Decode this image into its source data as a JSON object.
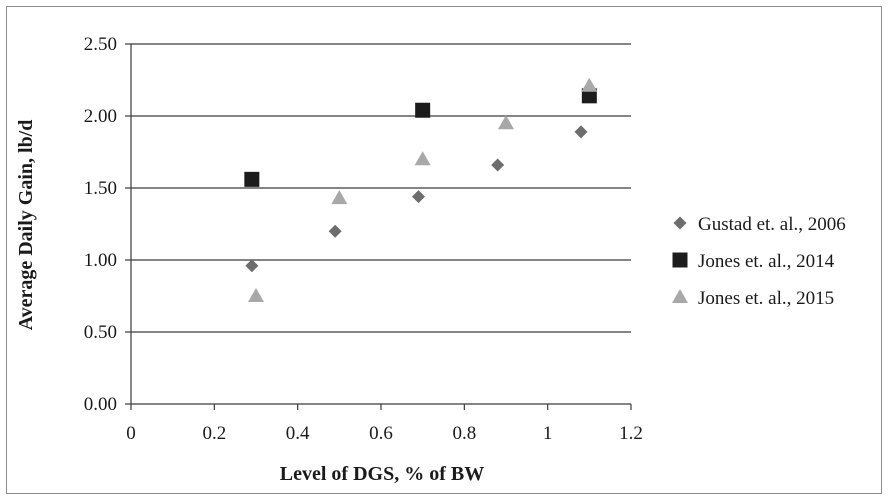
{
  "chart_data": {
    "type": "scatter",
    "title": "",
    "xlabel": "Level of DGS, % of BW",
    "ylabel": "Average Daily Gain, lb/d",
    "xlim": [
      0,
      1.2
    ],
    "ylim": [
      0,
      2.5
    ],
    "x_ticks": [
      "0",
      "0.2",
      "0.4",
      "0.6",
      "0.8",
      "1",
      "1.2"
    ],
    "y_ticks": [
      "0.00",
      "0.50",
      "1.00",
      "1.50",
      "2.00",
      "2.50"
    ],
    "grid": "horizontal",
    "legend_position": "right",
    "series": [
      {
        "name": "Gustad et. al., 2006",
        "marker": "diamond",
        "color": "#6d6d6d",
        "points": [
          {
            "x": 0.29,
            "y": 0.96
          },
          {
            "x": 0.49,
            "y": 1.2
          },
          {
            "x": 0.69,
            "y": 1.44
          },
          {
            "x": 0.88,
            "y": 1.66
          },
          {
            "x": 1.08,
            "y": 1.89
          }
        ]
      },
      {
        "name": "Jones et. al., 2014",
        "marker": "square",
        "color": "#1c1c1c",
        "points": [
          {
            "x": 0.29,
            "y": 1.56
          },
          {
            "x": 0.7,
            "y": 2.04
          },
          {
            "x": 1.1,
            "y": 2.14
          }
        ]
      },
      {
        "name": "Jones et. al., 2015",
        "marker": "triangle",
        "color": "#a8a8a8",
        "points": [
          {
            "x": 0.3,
            "y": 0.75
          },
          {
            "x": 0.5,
            "y": 1.43
          },
          {
            "x": 0.7,
            "y": 1.7
          },
          {
            "x": 0.9,
            "y": 1.95
          },
          {
            "x": 1.1,
            "y": 2.21
          }
        ]
      }
    ]
  }
}
